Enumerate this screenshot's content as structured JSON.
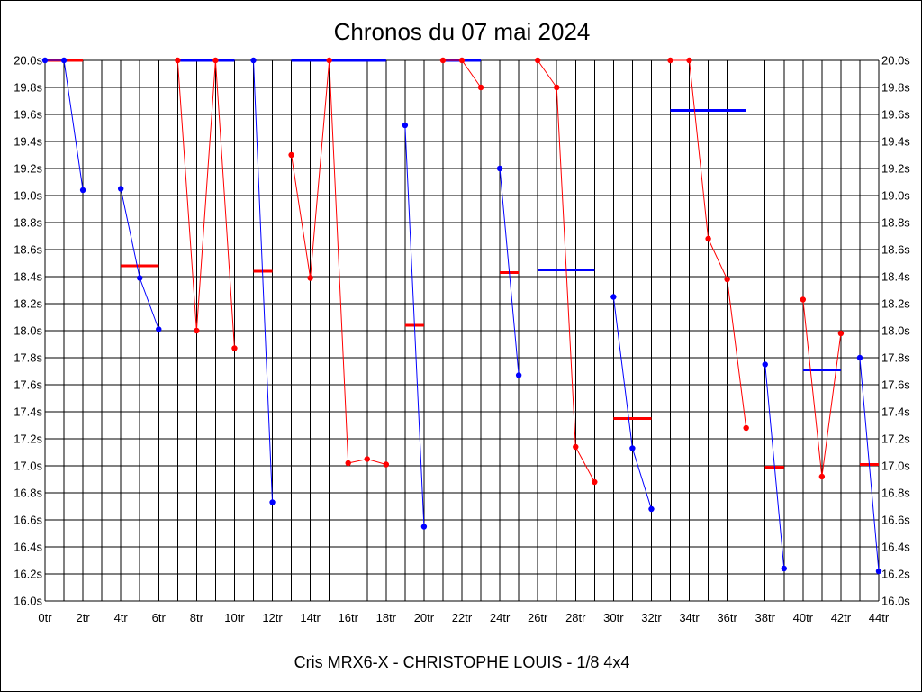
{
  "chart_data": {
    "type": "line",
    "title": "Chronos du 07 mai 2024",
    "footer": "Cris MRX6-X - CHRISTOPHE LOUIS - 1/8 4x4",
    "xlim": [
      0,
      44
    ],
    "ylim": [
      16.0,
      20.0
    ],
    "x_tick_step": 2,
    "y_tick_step": 0.2,
    "x_tick_labels": [
      "0tr",
      "2tr",
      "4tr",
      "6tr",
      "8tr",
      "10tr",
      "12tr",
      "14tr",
      "16tr",
      "18tr",
      "20tr",
      "22tr",
      "24tr",
      "26tr",
      "28tr",
      "30tr",
      "32tr",
      "34tr",
      "36tr",
      "38tr",
      "40tr",
      "42tr",
      "44tr"
    ],
    "y_tick_labels": [
      "16.0s",
      "16.2s",
      "16.4s",
      "16.6s",
      "16.8s",
      "17.0s",
      "17.2s",
      "17.4s",
      "17.6s",
      "17.8s",
      "18.0s",
      "18.2s",
      "18.4s",
      "18.6s",
      "18.8s",
      "19.0s",
      "19.2s",
      "19.4s",
      "19.6s",
      "19.8s",
      "20.0s"
    ],
    "grid": true,
    "colors": {
      "blue": "#0000ff",
      "red": "#ff0000"
    },
    "series": [
      {
        "color": "blue",
        "x": [
          0,
          1,
          2
        ],
        "y": [
          20.0,
          20.0,
          19.04
        ],
        "avg": 20.0,
        "avg_x": [
          0,
          2
        ]
      },
      {
        "color": "red",
        "x": [],
        "y": [],
        "avg": 20.0,
        "avg_x": [
          0,
          2
        ]
      },
      {
        "color": "blue",
        "x": [
          4,
          5,
          6
        ],
        "y": [
          19.05,
          18.39,
          18.01
        ],
        "avg": 18.48,
        "avg_x": [
          4,
          6
        ]
      },
      {
        "color": "red",
        "x": [
          7,
          8,
          9,
          10
        ],
        "y": [
          20.0,
          18.0,
          20.0,
          17.87
        ],
        "avg": 18.48,
        "avg_x": [
          4,
          6
        ]
      },
      {
        "color": "blue",
        "x": [],
        "y": [],
        "avg": 20.0,
        "avg_x": [
          7,
          10
        ]
      },
      {
        "color": "blue",
        "x": [
          11,
          12
        ],
        "y": [
          20.0,
          16.73
        ],
        "avg": 18.44,
        "avg_x": [
          11,
          12
        ]
      },
      {
        "color": "red",
        "x": [
          13,
          14,
          15,
          16,
          17,
          18
        ],
        "y": [
          19.3,
          18.39,
          20.0,
          17.02,
          17.05,
          17.01
        ],
        "avg": 20.0,
        "avg_x": [
          13,
          18
        ]
      },
      {
        "color": "blue",
        "x": [
          19,
          20
        ],
        "y": [
          19.52,
          16.55
        ],
        "avg": 18.04,
        "avg_x": [
          19,
          20
        ]
      },
      {
        "color": "red",
        "x": [
          21,
          22,
          23
        ],
        "y": [
          20.0,
          20.0,
          19.8
        ],
        "avg": 20.0,
        "avg_x": [
          21,
          23
        ]
      },
      {
        "color": "blue",
        "x": [
          24,
          25
        ],
        "y": [
          19.2,
          17.67
        ],
        "avg": 18.43,
        "avg_x": [
          24,
          25
        ]
      },
      {
        "color": "red",
        "x": [
          26,
          27,
          28,
          29
        ],
        "y": [
          20.0,
          19.8,
          17.14,
          16.88
        ],
        "avg": 18.45,
        "avg_x": [
          26,
          29
        ]
      },
      {
        "color": "blue",
        "x": [
          30,
          31,
          32
        ],
        "y": [
          18.25,
          17.13,
          16.68
        ],
        "avg": 17.35,
        "avg_x": [
          30,
          32
        ]
      },
      {
        "color": "red",
        "x": [
          33,
          34,
          35,
          36,
          37
        ],
        "y": [
          20.0,
          20.0,
          18.68,
          18.38,
          17.28
        ],
        "avg": 19.63,
        "avg_x": [
          33,
          37
        ]
      },
      {
        "color": "blue",
        "x": [
          38,
          39
        ],
        "y": [
          17.75,
          16.24
        ],
        "avg": 16.99,
        "avg_x": [
          38,
          39
        ]
      },
      {
        "color": "red",
        "x": [
          40,
          41,
          42
        ],
        "y": [
          18.23,
          16.92,
          17.98
        ],
        "avg": 17.71,
        "avg_x": [
          40,
          42
        ]
      },
      {
        "color": "blue",
        "x": [
          43,
          44
        ],
        "y": [
          17.8,
          16.22
        ],
        "avg": 17.01,
        "avg_x": [
          43,
          44
        ]
      }
    ],
    "averages": [
      {
        "color": "red",
        "x": [
          0,
          2
        ],
        "y": 20.0
      },
      {
        "color": "red",
        "x": [
          4,
          6
        ],
        "y": 18.48
      },
      {
        "color": "blue",
        "x": [
          7,
          10
        ],
        "y": 20.0
      },
      {
        "color": "red",
        "x": [
          11,
          12
        ],
        "y": 18.44
      },
      {
        "color": "blue",
        "x": [
          13,
          18
        ],
        "y": 20.0
      },
      {
        "color": "red",
        "x": [
          19,
          20
        ],
        "y": 18.04
      },
      {
        "color": "blue",
        "x": [
          21,
          23
        ],
        "y": 20.0
      },
      {
        "color": "red",
        "x": [
          24,
          25
        ],
        "y": 18.43
      },
      {
        "color": "blue",
        "x": [
          26,
          29
        ],
        "y": 18.45
      },
      {
        "color": "red",
        "x": [
          30,
          32
        ],
        "y": 17.35
      },
      {
        "color": "blue",
        "x": [
          33,
          37
        ],
        "y": 19.63
      },
      {
        "color": "red",
        "x": [
          38,
          39
        ],
        "y": 16.99
      },
      {
        "color": "blue",
        "x": [
          40,
          42
        ],
        "y": 17.71
      },
      {
        "color": "red",
        "x": [
          43,
          44
        ],
        "y": 17.01
      }
    ]
  }
}
